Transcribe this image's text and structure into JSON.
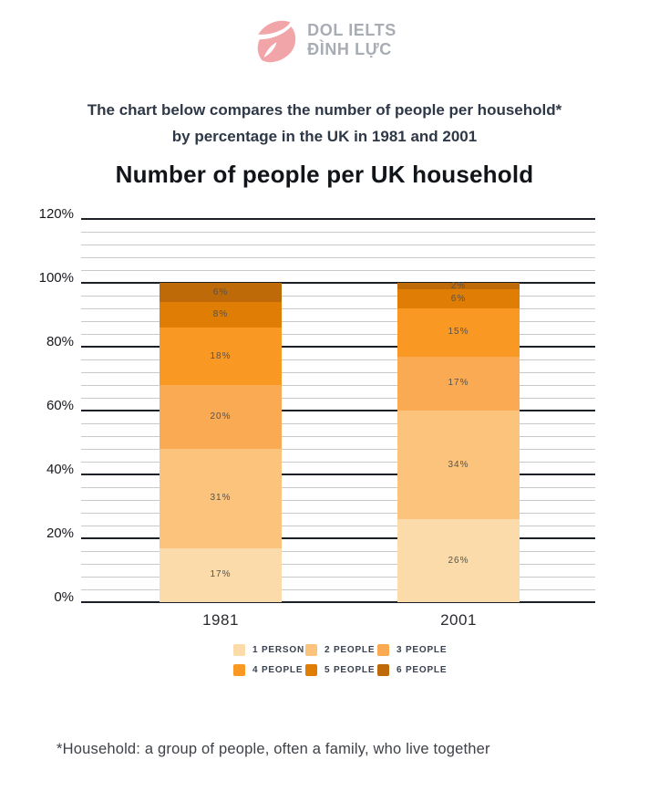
{
  "logo": {
    "line1": "DOL IELTS",
    "line2": "ĐÌNH LỰC"
  },
  "prompt": {
    "line1": "The chart below compares the number of people per household*",
    "line2": "by percentage in the UK in 1981 and 2001"
  },
  "chart_data": {
    "type": "bar",
    "stacked": true,
    "title": "Number of people per UK household",
    "categories": [
      "1981",
      "2001"
    ],
    "series": [
      {
        "name": "1 PERSON",
        "color": "#FBDBAA",
        "values": [
          17,
          26
        ]
      },
      {
        "name": "2 PEOPLE",
        "color": "#FBC37C",
        "values": [
          31,
          34
        ]
      },
      {
        "name": "3 PEOPLE",
        "color": "#FAAA52",
        "values": [
          20,
          17
        ]
      },
      {
        "name": "4 PEOPLE",
        "color": "#F99823",
        "values": [
          18,
          15
        ]
      },
      {
        "name": "5 PEOPLE",
        "color": "#DF7D04",
        "values": [
          8,
          6
        ]
      },
      {
        "name": "6 PEOPLE",
        "color": "#BE6A08",
        "values": [
          6,
          2
        ]
      }
    ],
    "xlabel": "",
    "ylabel": "",
    "ylim": [
      0,
      120
    ],
    "y_major_step": 20,
    "y_minor_step": 4,
    "y_ticks": [
      "0%",
      "20%",
      "40%",
      "60%",
      "80%",
      "100%",
      "120%"
    ],
    "y_tick_suffix": "%",
    "data_label_suffix": "%",
    "grid": true,
    "legend_position": "bottom"
  },
  "footnote": "*Household: a group of people, often a family, who live together",
  "colors": {
    "background": "#FFFFFF",
    "logo_pink": "#F2A5A9",
    "logo_text": "#A8ACB4",
    "subtitle_text": "#2E3847",
    "title_text": "#111418",
    "grid_major": "#1C2028",
    "grid_minor": "#C9C9C9",
    "tick_text": "#16181D",
    "category_text": "#2A2B31",
    "segment_label_text": "#57524A",
    "legend_text": "#3A4150",
    "footnote_text": "#3E4147"
  }
}
